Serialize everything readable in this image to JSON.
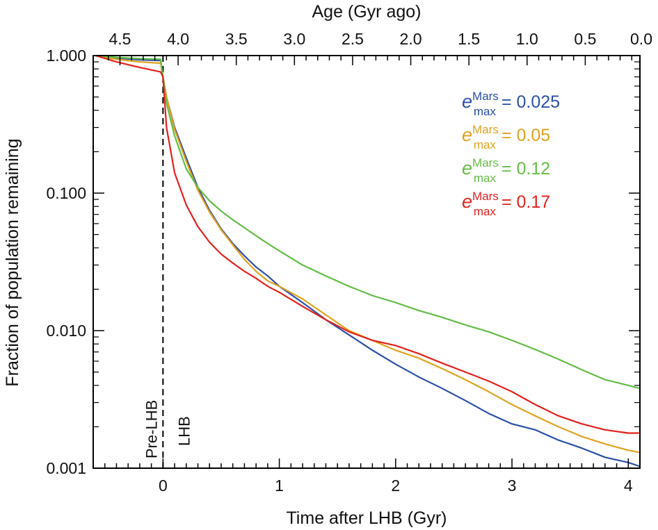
{
  "chart_data": {
    "type": "line",
    "title": "",
    "xlabel": "Time after LHB (Gyr)",
    "ylabel": "Fraction of population remaining",
    "top_xlabel": "Age (Gyr ago)",
    "xlim": [
      -0.6,
      4.1
    ],
    "ylim": [
      0.001,
      1.0
    ],
    "yscale": "log",
    "x_ticks": [
      0,
      1,
      2,
      3,
      4
    ],
    "x_tick_labels": [
      "0",
      "1",
      "2",
      "3",
      "4"
    ],
    "top_ticks_age": [
      4.5,
      4.0,
      3.5,
      3.0,
      2.5,
      2.0,
      1.5,
      1.0,
      0.5,
      0.0
    ],
    "top_tick_labels": [
      "4.5",
      "4.0",
      "3.5",
      "3.0",
      "2.5",
      "2.0",
      "1.5",
      "1.0",
      "0.5",
      "0.0"
    ],
    "y_ticks": [
      1.0,
      0.1,
      0.01,
      0.001
    ],
    "y_tick_labels": [
      "1.000",
      "0.100",
      "0.010",
      "0.001"
    ],
    "vline": {
      "x": 0,
      "style": "dashed"
    },
    "annotations": [
      {
        "text": "Pre-LHB",
        "x": -0.05,
        "position": "left of dashed line, bottom"
      },
      {
        "text": "LHB",
        "x": 0.12,
        "position": "right of dashed line, bottom"
      }
    ],
    "legend": {
      "placement": "top-right",
      "symbol": "e",
      "superscript": "Mars",
      "subscript": "max",
      "entries": [
        "= 0.025",
        "= 0.05",
        "= 0.12",
        "= 0.17"
      ]
    },
    "series": [
      {
        "name": "e_max^Mars = 0.025",
        "color": "#2b4fa8",
        "x": [
          -0.58,
          -0.4,
          -0.2,
          -0.02,
          0,
          0.03,
          0.1,
          0.2,
          0.3,
          0.4,
          0.5,
          0.6,
          0.7,
          0.8,
          0.9,
          1.0,
          1.2,
          1.4,
          1.6,
          1.8,
          2.0,
          2.2,
          2.4,
          2.6,
          2.8,
          3.0,
          3.2,
          3.4,
          3.6,
          3.8,
          4.0,
          4.1
        ],
        "y": [
          1.0,
          0.96,
          0.93,
          0.92,
          0.7,
          0.5,
          0.3,
          0.18,
          0.11,
          0.075,
          0.055,
          0.043,
          0.035,
          0.029,
          0.025,
          0.021,
          0.016,
          0.012,
          0.0093,
          0.0072,
          0.0057,
          0.0046,
          0.0038,
          0.0031,
          0.0025,
          0.0021,
          0.0019,
          0.0016,
          0.0014,
          0.0012,
          0.0011,
          0.00103
        ]
      },
      {
        "name": "e_max^Mars = 0.05",
        "color": "#e0a21f",
        "x": [
          -0.58,
          -0.4,
          -0.2,
          -0.02,
          0,
          0.03,
          0.1,
          0.2,
          0.3,
          0.4,
          0.5,
          0.6,
          0.7,
          0.8,
          0.9,
          1.0,
          1.2,
          1.4,
          1.6,
          1.8,
          2.0,
          2.2,
          2.4,
          2.6,
          2.8,
          3.0,
          3.2,
          3.4,
          3.6,
          3.8,
          4.0,
          4.1
        ],
        "y": [
          1.0,
          0.94,
          0.9,
          0.88,
          0.7,
          0.5,
          0.29,
          0.17,
          0.105,
          0.073,
          0.054,
          0.042,
          0.033,
          0.027,
          0.023,
          0.021,
          0.017,
          0.013,
          0.01,
          0.0085,
          0.0072,
          0.0063,
          0.0053,
          0.0044,
          0.0036,
          0.0029,
          0.0024,
          0.002,
          0.0017,
          0.0015,
          0.00135,
          0.0013
        ]
      },
      {
        "name": "e_max^Mars = 0.12",
        "color": "#63bd45",
        "x": [
          -0.58,
          -0.4,
          -0.2,
          -0.02,
          0,
          0.03,
          0.1,
          0.2,
          0.3,
          0.4,
          0.5,
          0.6,
          0.7,
          0.8,
          0.9,
          1.0,
          1.2,
          1.4,
          1.6,
          1.8,
          2.0,
          2.2,
          2.4,
          2.6,
          2.8,
          3.0,
          3.2,
          3.4,
          3.6,
          3.8,
          4.0,
          4.1
        ],
        "y": [
          1.0,
          0.97,
          0.95,
          0.94,
          0.7,
          0.45,
          0.26,
          0.15,
          0.11,
          0.088,
          0.074,
          0.064,
          0.056,
          0.049,
          0.043,
          0.038,
          0.03,
          0.025,
          0.021,
          0.018,
          0.016,
          0.014,
          0.0125,
          0.011,
          0.0098,
          0.0085,
          0.0073,
          0.0062,
          0.0052,
          0.0044,
          0.004,
          0.0038
        ]
      },
      {
        "name": "e_max^Mars = 0.17",
        "color": "#e3211c",
        "x": [
          -0.58,
          -0.4,
          -0.2,
          -0.02,
          0,
          0.03,
          0.1,
          0.2,
          0.3,
          0.4,
          0.5,
          0.6,
          0.7,
          0.8,
          0.9,
          1.0,
          1.2,
          1.4,
          1.6,
          1.8,
          2.0,
          2.2,
          2.4,
          2.6,
          2.8,
          3.0,
          3.2,
          3.4,
          3.6,
          3.8,
          4.0,
          4.1
        ],
        "y": [
          1.0,
          0.9,
          0.82,
          0.76,
          0.7,
          0.3,
          0.14,
          0.082,
          0.057,
          0.044,
          0.036,
          0.031,
          0.027,
          0.024,
          0.021,
          0.019,
          0.015,
          0.012,
          0.0098,
          0.0085,
          0.0078,
          0.0068,
          0.0058,
          0.005,
          0.0043,
          0.0036,
          0.0029,
          0.0024,
          0.0021,
          0.0019,
          0.0018,
          0.0018
        ]
      }
    ]
  }
}
